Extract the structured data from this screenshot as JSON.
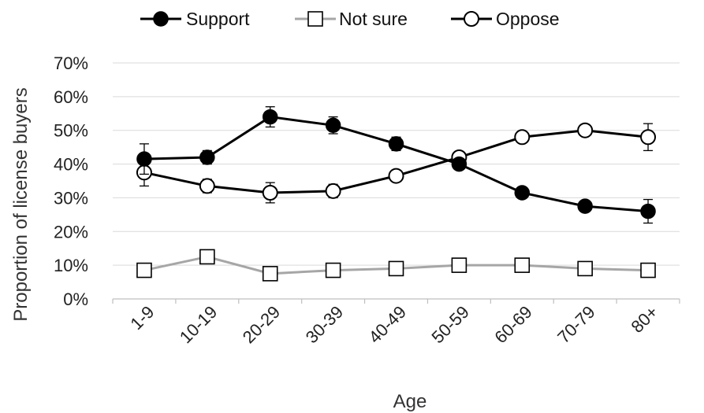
{
  "chart_data": {
    "type": "line",
    "xlabel": "Age",
    "ylabel": "Proportion of license buyers",
    "categories": [
      "1-9",
      "10-19",
      "20-29",
      "30-39",
      "40-49",
      "50-59",
      "60-69",
      "70-79",
      "80+"
    ],
    "y_ticks": [
      "0%",
      "10%",
      "20%",
      "30%",
      "40%",
      "50%",
      "60%",
      "70%"
    ],
    "ylim": [
      0,
      70
    ],
    "grid": "horizontal",
    "legend_position": "top",
    "series": [
      {
        "name": "Support",
        "marker": "filled-circle",
        "color": "#000000",
        "values": [
          41.5,
          42,
          54,
          51.5,
          46,
          40,
          31.5,
          27.5,
          26
        ],
        "error": [
          4.5,
          2,
          3,
          2.5,
          2,
          1.5,
          1.5,
          1.5,
          3.5
        ]
      },
      {
        "name": "Not sure",
        "marker": "open-square",
        "color": "#a6a6a6",
        "values": [
          8.5,
          12.5,
          7.5,
          8.5,
          9,
          10,
          10,
          9,
          8.5
        ],
        "error": [
          2,
          1.5,
          1,
          1,
          1,
          0.8,
          0.8,
          0.8,
          2
        ]
      },
      {
        "name": "Oppose",
        "marker": "open-circle",
        "color": "#000000",
        "values": [
          37.5,
          33.5,
          31.5,
          32,
          36.5,
          42,
          48,
          50,
          48
        ],
        "error": [
          4,
          2,
          3,
          2,
          1.5,
          1.5,
          1.5,
          1.5,
          4
        ]
      }
    ]
  }
}
